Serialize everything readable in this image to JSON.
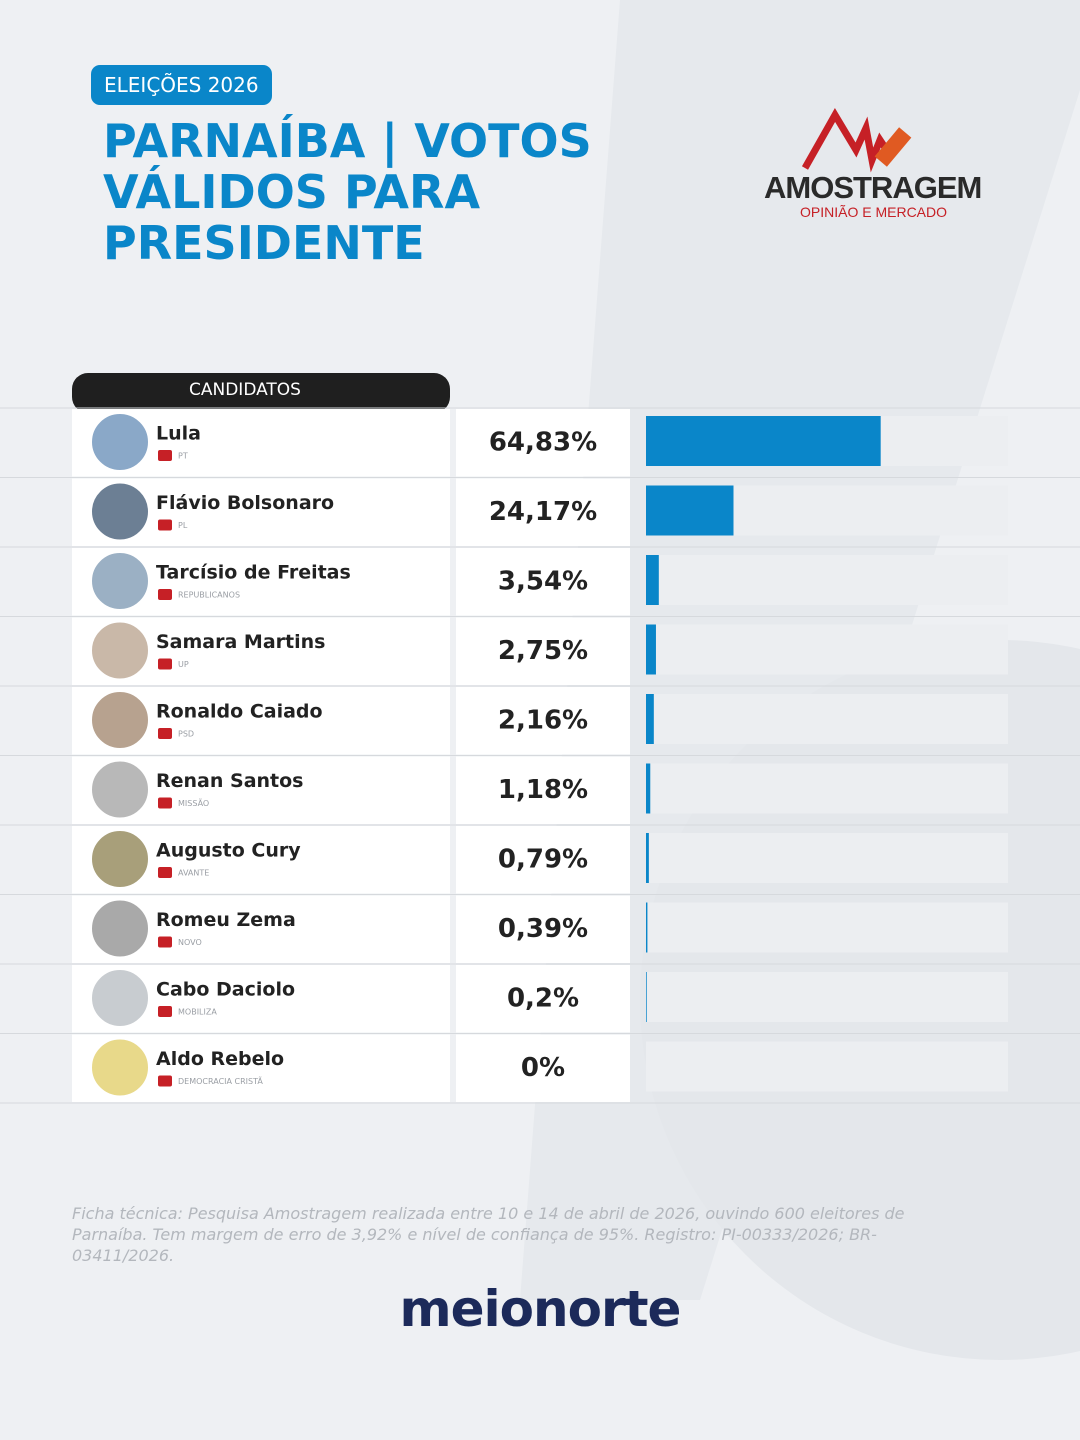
{
  "header": {
    "tag": "ELEIÇÕES 2026",
    "title": "PARNAÍBA | VOTOS VÁLIDOS PARA PRESIDENTE"
  },
  "logo": {
    "name": "AMOSTRAGEM",
    "tagline": "OPINIÃO E MERCADO"
  },
  "chart_data": {
    "type": "bar",
    "column_header": "CANDIDATOS",
    "categories": [
      "Lula",
      "Flávio Bolsonaro",
      "Tarcísio de Freitas",
      "Samara Martins",
      "Ronaldo Caiado",
      "Renan Santos",
      "Augusto Cury",
      "Romeu Zema",
      "Cabo Daciolo",
      "Aldo Rebelo"
    ],
    "parties": [
      "PT",
      "PL",
      "REPUBLICANOS",
      "UP",
      "PSD",
      "MISSÃO",
      "AVANTE",
      "NOVO",
      "MOBILIZA",
      "DEMOCRACIA CRISTÃ"
    ],
    "values": [
      64.83,
      24.17,
      3.54,
      2.75,
      2.16,
      1.18,
      0.79,
      0.39,
      0.2,
      0
    ],
    "value_labels": [
      "64,83%",
      "24,17%",
      "3,54%",
      "2,75%",
      "2,16%",
      "1,18%",
      "0,79%",
      "0,39%",
      "0,2%",
      "0%"
    ],
    "xlim": [
      0,
      100
    ],
    "color": "#0a86c9"
  },
  "footer": {
    "note": "Ficha técnica: Pesquisa Amostragem realizada entre 10 e 14 de abril de 2026, ouvindo 600 eleitores de Parnaíba. Tem margem de erro de 3,92% e nível de confiança de 95%. Registro: PI-00333/2026; BR-03411/2026.",
    "brand": "meionorte"
  }
}
